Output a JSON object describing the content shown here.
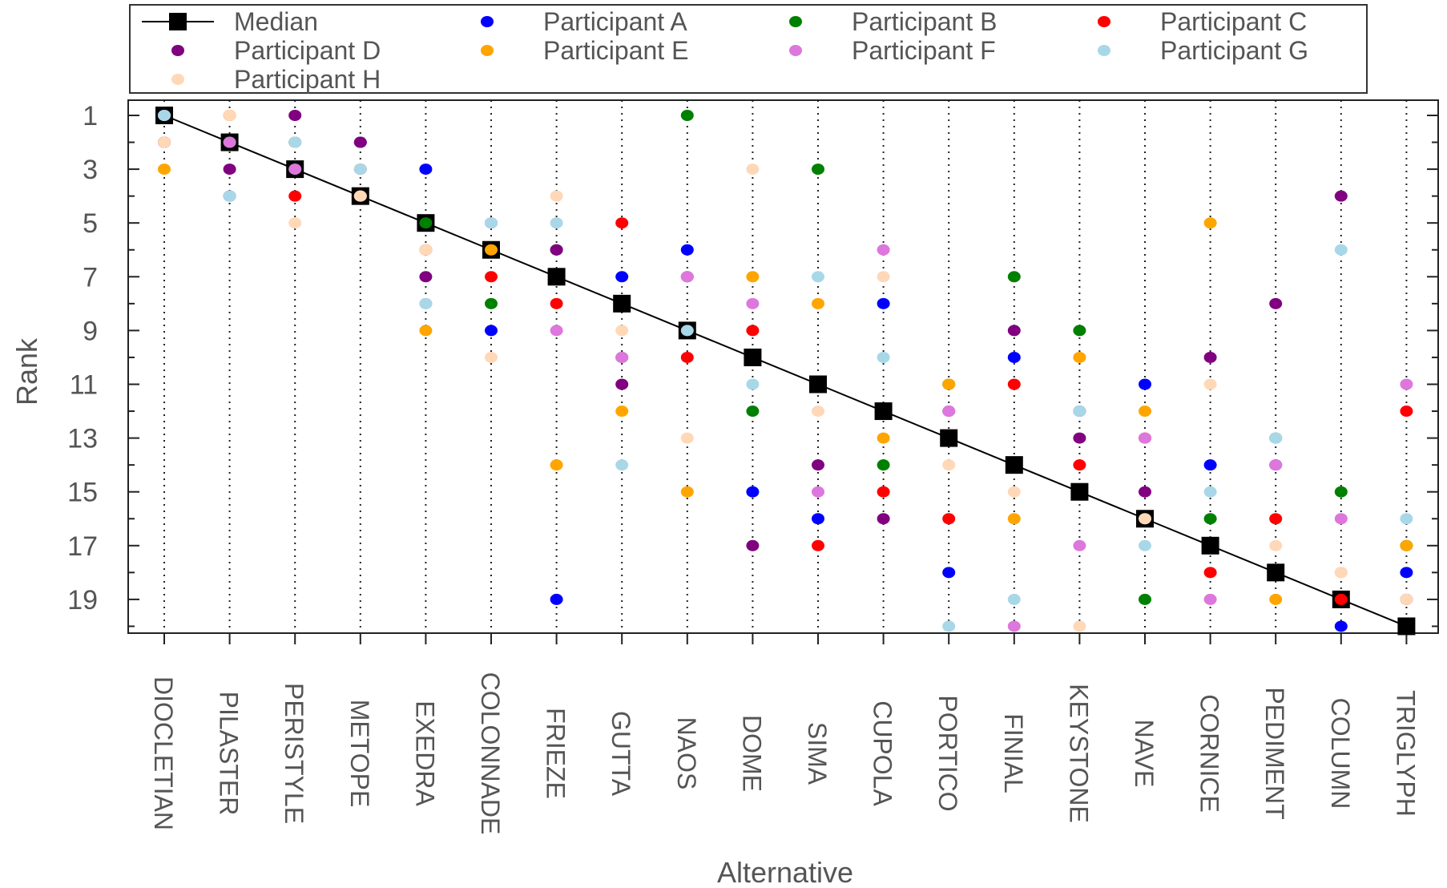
{
  "chart_data": {
    "type": "scatter",
    "title": "",
    "xlabel": "Alternative",
    "ylabel": "Rank",
    "categories": [
      "DIOCLETIAN",
      "PILASTER",
      "PERISTYLE",
      "METOPE",
      "EXEDRA",
      "COLONNADE",
      "FRIEZE",
      "GUTTA",
      "NAOS",
      "DOME",
      "SIMA",
      "CUPOLA",
      "PORTICO",
      "FINIAL",
      "KEYSTONE",
      "NAVE",
      "CORNICE",
      "PEDIMENT",
      "COLUMN",
      "TRIGLYPH"
    ],
    "ylim": [
      1,
      20
    ],
    "y_reversed": true,
    "y_ticks": [
      1,
      3,
      5,
      7,
      9,
      11,
      13,
      15,
      17,
      19
    ],
    "y_tick_labels": [
      "1",
      "3",
      "5",
      "7",
      "9",
      "11",
      "13",
      "15",
      "17",
      "19"
    ],
    "grid": "vertical dotted lines at each category",
    "legend_placement": "top, outside plot",
    "series": [
      {
        "name": "Median",
        "color": "#000000",
        "marker": "square",
        "line": true,
        "values": [
          1,
          2,
          3,
          4,
          5,
          6,
          7,
          8,
          9,
          10,
          11,
          12,
          13,
          14,
          15,
          16,
          17,
          18,
          19,
          20
        ]
      },
      {
        "name": "Participant A",
        "color": "#0000ff",
        "marker": "circle",
        "values": [
          1,
          4,
          2,
          2,
          3,
          9,
          19,
          7,
          6,
          15,
          16,
          8,
          18,
          10,
          12,
          11,
          14,
          14,
          20,
          18
        ]
      },
      {
        "name": "Participant B",
        "color": "#008000",
        "marker": "circle",
        "values": [
          1,
          2,
          3,
          4,
          5,
          8,
          6,
          10,
          1,
          12,
          3,
          14,
          11,
          7,
          9,
          19,
          16,
          13,
          15,
          17
        ]
      },
      {
        "name": "Participant C",
        "color": "#ff0000",
        "marker": "circle",
        "values": [
          2,
          1,
          4,
          3,
          6,
          7,
          8,
          5,
          10,
          9,
          17,
          15,
          16,
          11,
          14,
          13,
          18,
          16,
          19,
          12
        ]
      },
      {
        "name": "Participant D",
        "color": "#800080",
        "marker": "circle",
        "values": [
          2,
          3,
          1,
          2,
          7,
          5,
          6,
          11,
          7,
          17,
          14,
          16,
          12,
          9,
          13,
          15,
          10,
          8,
          4,
          19
        ]
      },
      {
        "name": "Participant E",
        "color": "#ffa500",
        "marker": "circle",
        "values": [
          3,
          1,
          2,
          4,
          9,
          6,
          14,
          12,
          15,
          7,
          8,
          13,
          11,
          16,
          10,
          12,
          5,
          19,
          18,
          17
        ]
      },
      {
        "name": "Participant F",
        "color": "#dd77dd",
        "marker": "circle",
        "values": [
          1,
          2,
          3,
          4,
          8,
          5,
          9,
          10,
          7,
          8,
          15,
          6,
          12,
          20,
          17,
          13,
          19,
          14,
          16,
          11
        ]
      },
      {
        "name": "Participant G",
        "color": "#a8d8e8",
        "marker": "circle",
        "values": [
          1,
          4,
          2,
          3,
          8,
          5,
          5,
          14,
          9,
          11,
          7,
          10,
          20,
          19,
          12,
          17,
          15,
          13,
          6,
          16
        ]
      },
      {
        "name": "Participant H",
        "color": "#ffd8b8",
        "marker": "circle",
        "values": [
          2,
          1,
          5,
          4,
          6,
          10,
          4,
          9,
          13,
          3,
          12,
          7,
          14,
          15,
          20,
          16,
          11,
          17,
          18,
          19
        ]
      }
    ]
  }
}
